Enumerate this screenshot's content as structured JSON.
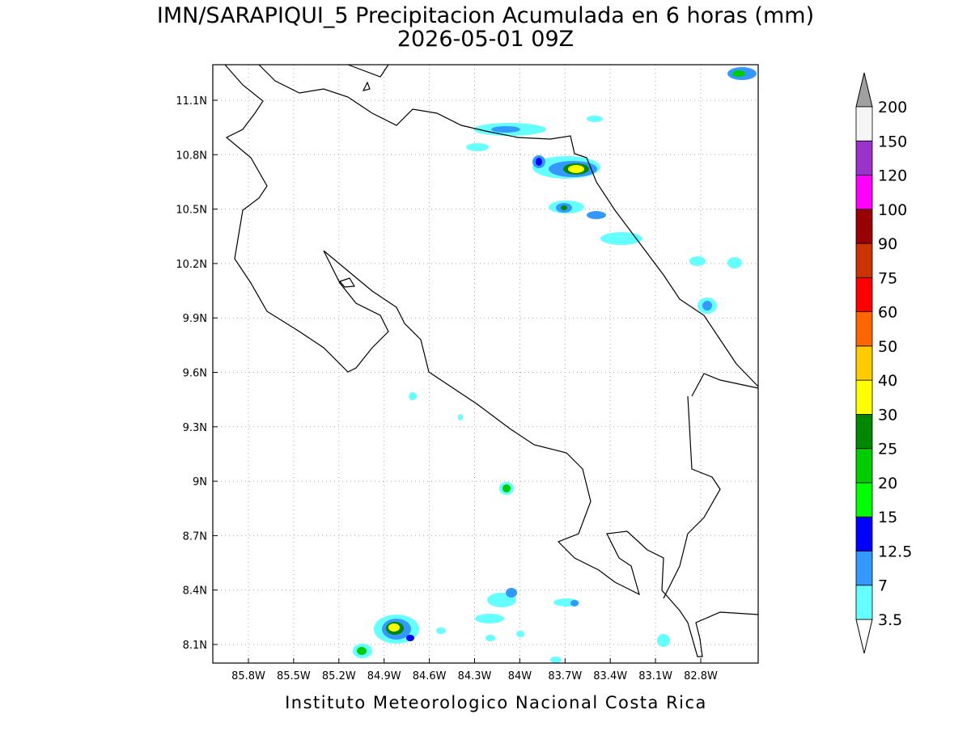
{
  "title": "IMN/SARAPIQUI_5 Precipitacion Acumulada en 6 horas (mm)",
  "subtitle": "2026-05-01 09Z",
  "map": {
    "lat_labels": [
      "11.1N",
      "10.8N",
      "10.5N",
      "10.2N",
      "9.9N",
      "9.6N",
      "9.3N",
      "9N",
      "8.7N",
      "8.4N",
      "8.1N"
    ],
    "lon_labels": [
      "85.8W",
      "85.5W",
      "85.2W",
      "84.9W",
      "84.6W",
      "84.3W",
      "84W",
      "83.7W",
      "83.4W",
      "83.1W",
      "82.8W"
    ]
  },
  "colorbar": {
    "levels": [
      3.5,
      7,
      12.5,
      15,
      20,
      25,
      30,
      40,
      50,
      60,
      75,
      90,
      100,
      120,
      150,
      200
    ],
    "colors": [
      "#66ffff",
      "#3399ff",
      "#0000ff",
      "#00ff00",
      "#00cc00",
      "#008800",
      "#ffff00",
      "#ffcc00",
      "#ff6600",
      "#ff0000",
      "#cc3300",
      "#990000",
      "#ff00ff",
      "#9933cc",
      "#f5f5f5"
    ],
    "over_color": "#a0a0a0",
    "under_color": "#ffffff"
  },
  "footer": "Instituto Meteorologico Nacional Costa Rica"
}
